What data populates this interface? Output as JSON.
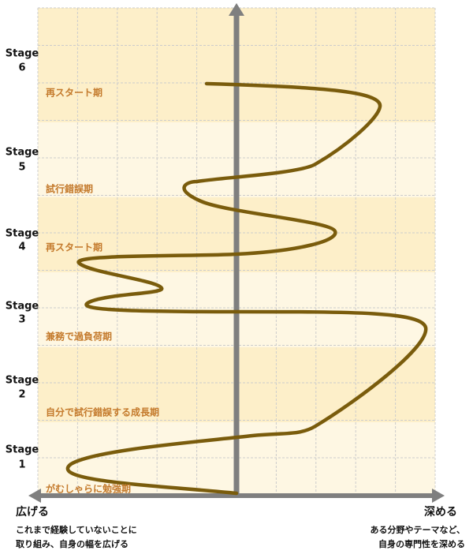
{
  "stages": [
    {
      "label": "Stage",
      "number": 6
    },
    {
      "label": "Stage",
      "number": 5
    },
    {
      "label": "Stage",
      "number": 4
    },
    {
      "label": "Stage",
      "number": 3
    },
    {
      "label": "Stage",
      "number": 2
    },
    {
      "label": "Stage",
      "number": 1
    }
  ],
  "phases": [
    "再スタート期",
    "試行錯誤期",
    "再スタート期",
    "兼務で過負荷期",
    "自分で試行錯誤する成長期",
    "がむしゃらに勉強期"
  ],
  "axis": {
    "left": {
      "label": "広げる",
      "description": [
        "これまで経験していないことに",
        "取り組み、自身の幅を広げる"
      ]
    },
    "right": {
      "label": "深める",
      "description": [
        "ある分野やテーマなど、",
        "自身の専門性を深める"
      ]
    }
  }
}
